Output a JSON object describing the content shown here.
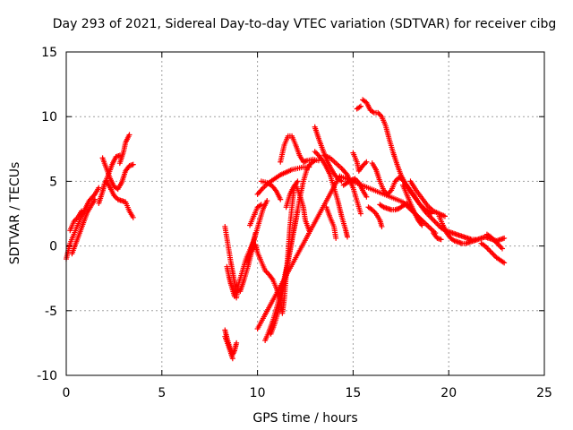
{
  "chart_data": {
    "type": "scatter",
    "title": "Day 293 of 2021, Sidereal Day-to-day VTEC variation (SDTVAR) for receiver cibg",
    "xlabel": "GPS time / hours",
    "ylabel": "SDTVAR / TECUs",
    "xlim": [
      0,
      25
    ],
    "ylim": [
      -10,
      15
    ],
    "xticks": [
      0,
      5,
      10,
      15,
      20,
      25
    ],
    "yticks": [
      -10,
      -5,
      0,
      5,
      10,
      15
    ],
    "xtick_labels": [
      "0",
      "5",
      "10",
      "15",
      "20",
      "25"
    ],
    "ytick_labels": [
      "-10",
      "-5",
      "0",
      "5",
      "10",
      "15"
    ],
    "grid": true,
    "marker": "+",
    "color": "#ff0000",
    "tracks": [
      [
        [
          0.0,
          -1.0
        ],
        [
          0.2,
          0.2
        ],
        [
          0.4,
          0.9
        ],
        [
          0.6,
          1.6
        ],
        [
          0.8,
          2.3
        ],
        [
          1.0,
          2.9
        ],
        [
          1.2,
          3.5
        ],
        [
          1.5,
          4.0
        ],
        [
          1.7,
          4.5
        ]
      ],
      [
        [
          0.3,
          -0.6
        ],
        [
          0.5,
          0.2
        ],
        [
          0.7,
          1.0
        ],
        [
          0.9,
          1.8
        ],
        [
          1.1,
          2.6
        ],
        [
          1.3,
          3.1
        ],
        [
          1.5,
          3.6
        ]
      ],
      [
        [
          0.2,
          1.2
        ],
        [
          0.4,
          1.9
        ],
        [
          0.6,
          2.2
        ],
        [
          0.8,
          2.7
        ]
      ],
      [
        [
          1.7,
          3.3
        ],
        [
          1.9,
          4.2
        ],
        [
          2.0,
          4.8
        ],
        [
          2.2,
          5.5
        ],
        [
          2.4,
          6.3
        ],
        [
          2.6,
          6.9
        ],
        [
          2.8,
          7.0
        ]
      ],
      [
        [
          1.9,
          6.8
        ],
        [
          2.1,
          6.0
        ],
        [
          2.3,
          5.2
        ],
        [
          2.5,
          4.6
        ],
        [
          2.7,
          4.4
        ],
        [
          2.9,
          4.9
        ],
        [
          3.1,
          5.8
        ],
        [
          3.3,
          6.2
        ],
        [
          3.5,
          6.3
        ]
      ],
      [
        [
          2.8,
          6.4
        ],
        [
          3.0,
          7.3
        ],
        [
          3.1,
          8.0
        ],
        [
          3.3,
          8.6
        ]
      ],
      [
        [
          2.1,
          5.0
        ],
        [
          2.3,
          4.5
        ],
        [
          2.5,
          3.9
        ],
        [
          2.7,
          3.6
        ],
        [
          2.9,
          3.5
        ],
        [
          3.1,
          3.4
        ],
        [
          3.3,
          2.7
        ],
        [
          3.5,
          2.2
        ]
      ],
      [
        [
          8.3,
          1.5
        ],
        [
          8.4,
          0.6
        ],
        [
          8.5,
          -0.3
        ],
        [
          8.6,
          -1.2
        ],
        [
          8.7,
          -2.0
        ],
        [
          8.8,
          -2.8
        ],
        [
          8.9,
          -3.6
        ]
      ],
      [
        [
          8.4,
          -1.6
        ],
        [
          8.5,
          -2.3
        ],
        [
          8.6,
          -2.9
        ],
        [
          8.7,
          -3.4
        ],
        [
          8.8,
          -3.9
        ]
      ],
      [
        [
          8.3,
          -6.5
        ],
        [
          8.4,
          -7.1
        ],
        [
          8.5,
          -7.6
        ],
        [
          8.6,
          -8.0
        ],
        [
          8.7,
          -8.4
        ],
        [
          8.8,
          -8.1
        ],
        [
          8.9,
          -7.5
        ]
      ],
      [
        [
          8.3,
          -7.0
        ],
        [
          8.5,
          -7.8
        ],
        [
          8.7,
          -8.7
        ]
      ],
      [
        [
          8.9,
          -4.0
        ],
        [
          9.0,
          -3.0
        ],
        [
          9.2,
          -2.0
        ],
        [
          9.4,
          -1.0
        ],
        [
          9.6,
          -0.3
        ],
        [
          9.8,
          0.4
        ],
        [
          9.9,
          1.0
        ]
      ],
      [
        [
          9.5,
          -1.2
        ],
        [
          9.7,
          -0.1
        ],
        [
          9.9,
          0.9
        ],
        [
          10.1,
          1.9
        ],
        [
          10.3,
          2.9
        ],
        [
          10.5,
          3.5
        ]
      ],
      [
        [
          9.6,
          1.6
        ],
        [
          9.8,
          2.3
        ],
        [
          10.0,
          3.0
        ],
        [
          10.2,
          3.2
        ]
      ],
      [
        [
          9.1,
          -3.5
        ],
        [
          9.3,
          -2.6
        ],
        [
          9.5,
          -1.6
        ],
        [
          9.7,
          -0.4
        ],
        [
          9.9,
          0.1
        ],
        [
          10.0,
          -0.5
        ],
        [
          10.2,
          -1.2
        ],
        [
          10.4,
          -1.9
        ],
        [
          10.6,
          -2.2
        ],
        [
          10.8,
          -2.6
        ],
        [
          11.0,
          -3.3
        ],
        [
          11.2,
          -4.2
        ],
        [
          11.3,
          -5.2
        ],
        [
          11.4,
          -4.1
        ],
        [
          11.5,
          -2.3
        ],
        [
          11.6,
          -0.5
        ],
        [
          11.7,
          1.5
        ],
        [
          11.8,
          3.0
        ],
        [
          11.9,
          4.3
        ]
      ],
      [
        [
          10.4,
          -7.3
        ],
        [
          10.6,
          -6.6
        ],
        [
          10.8,
          -5.8
        ],
        [
          11.0,
          -4.8
        ],
        [
          11.2,
          -3.7
        ],
        [
          11.4,
          -2.5
        ],
        [
          11.6,
          -1.1
        ],
        [
          11.8,
          0.5
        ],
        [
          12.0,
          2.0
        ],
        [
          12.2,
          3.6
        ],
        [
          12.4,
          5.0
        ],
        [
          12.6,
          6.0
        ],
        [
          12.8,
          6.4
        ],
        [
          13.0,
          6.6
        ]
      ],
      [
        [
          10.7,
          -6.8
        ],
        [
          10.9,
          -6.0
        ],
        [
          11.1,
          -5.0
        ],
        [
          11.3,
          -3.5
        ],
        [
          11.5,
          -2.0
        ],
        [
          11.7,
          -0.4
        ],
        [
          11.9,
          1.2
        ],
        [
          12.1,
          2.7
        ]
      ],
      [
        [
          10.0,
          4.0
        ],
        [
          10.3,
          4.5
        ],
        [
          10.6,
          4.9
        ],
        [
          10.9,
          5.2
        ],
        [
          11.2,
          5.5
        ],
        [
          11.5,
          5.7
        ],
        [
          11.8,
          5.9
        ],
        [
          12.1,
          6.0
        ],
        [
          12.4,
          6.1
        ],
        [
          12.7,
          6.1
        ]
      ],
      [
        [
          10.2,
          5.0
        ],
        [
          10.5,
          4.9
        ],
        [
          10.8,
          4.6
        ],
        [
          11.0,
          4.2
        ],
        [
          11.2,
          3.6
        ]
      ],
      [
        [
          11.2,
          6.5
        ],
        [
          11.4,
          7.8
        ],
        [
          11.6,
          8.5
        ],
        [
          11.8,
          8.5
        ],
        [
          12.0,
          7.8
        ],
        [
          12.2,
          7.0
        ],
        [
          12.4,
          6.5
        ],
        [
          12.6,
          6.6
        ],
        [
          12.9,
          6.7
        ],
        [
          13.2,
          6.6
        ]
      ],
      [
        [
          12.0,
          4.7
        ],
        [
          12.2,
          4.0
        ],
        [
          12.4,
          3.0
        ],
        [
          12.5,
          2.0
        ],
        [
          12.7,
          1.2
        ]
      ],
      [
        [
          11.5,
          3.0
        ],
        [
          11.7,
          4.0
        ],
        [
          11.9,
          4.6
        ],
        [
          12.1,
          5.0
        ]
      ],
      [
        [
          13.0,
          9.2
        ],
        [
          13.2,
          8.3
        ],
        [
          13.4,
          7.5
        ],
        [
          13.6,
          6.7
        ],
        [
          13.8,
          6.1
        ],
        [
          14.0,
          5.6
        ],
        [
          14.2,
          5.2
        ],
        [
          14.4,
          5.0
        ]
      ],
      [
        [
          13.0,
          7.3
        ],
        [
          13.2,
          7.0
        ],
        [
          13.4,
          6.6
        ],
        [
          13.6,
          6.1
        ],
        [
          13.8,
          5.5
        ],
        [
          14.0,
          4.5
        ],
        [
          14.2,
          3.5
        ],
        [
          14.4,
          2.3
        ],
        [
          14.6,
          1.3
        ],
        [
          14.7,
          0.7
        ]
      ],
      [
        [
          13.5,
          7.0
        ],
        [
          13.8,
          6.8
        ],
        [
          14.1,
          6.4
        ],
        [
          14.4,
          6.0
        ],
        [
          14.7,
          5.5
        ],
        [
          15.0,
          4.5
        ],
        [
          15.2,
          3.5
        ],
        [
          15.4,
          2.5
        ]
      ],
      [
        [
          13.6,
          3.0
        ],
        [
          13.8,
          2.2
        ],
        [
          14.0,
          1.5
        ],
        [
          14.1,
          0.6
        ]
      ],
      [
        [
          14.5,
          4.7
        ],
        [
          14.7,
          4.9
        ],
        [
          14.9,
          5.1
        ],
        [
          15.1,
          5.2
        ],
        [
          15.3,
          4.9
        ],
        [
          15.5,
          4.3
        ],
        [
          15.7,
          3.8
        ]
      ],
      [
        [
          15.0,
          7.2
        ],
        [
          15.2,
          6.5
        ],
        [
          15.3,
          5.8
        ],
        [
          15.5,
          6.2
        ],
        [
          15.7,
          6.5
        ]
      ],
      [
        [
          15.2,
          10.6
        ],
        [
          15.4,
          10.8
        ]
      ],
      [
        [
          15.5,
          11.3
        ],
        [
          15.7,
          11.1
        ],
        [
          15.9,
          10.5
        ],
        [
          16.1,
          10.3
        ],
        [
          16.3,
          10.3
        ],
        [
          16.5,
          10.0
        ],
        [
          16.7,
          9.3
        ],
        [
          16.9,
          8.2
        ],
        [
          17.1,
          7.2
        ],
        [
          17.3,
          6.3
        ],
        [
          17.5,
          5.5
        ],
        [
          17.7,
          4.9
        ],
        [
          17.9,
          4.4
        ],
        [
          18.1,
          4.0
        ],
        [
          18.3,
          3.6
        ],
        [
          18.5,
          3.2
        ],
        [
          18.7,
          2.9
        ],
        [
          18.9,
          2.7
        ],
        [
          19.1,
          2.5
        ]
      ],
      [
        [
          15.8,
          3.0
        ],
        [
          16.0,
          2.8
        ],
        [
          16.2,
          2.5
        ],
        [
          16.4,
          2.0
        ],
        [
          16.5,
          1.5
        ]
      ],
      [
        [
          16.0,
          6.4
        ],
        [
          16.2,
          5.9
        ],
        [
          16.4,
          5.0
        ],
        [
          16.6,
          4.3
        ],
        [
          16.8,
          4.0
        ],
        [
          17.0,
          4.3
        ],
        [
          17.2,
          5.0
        ],
        [
          17.4,
          5.3
        ],
        [
          17.6,
          5.1
        ],
        [
          17.8,
          4.7
        ],
        [
          18.0,
          4.3
        ],
        [
          18.2,
          3.9
        ],
        [
          18.4,
          3.4
        ],
        [
          18.6,
          3.0
        ],
        [
          18.8,
          2.6
        ],
        [
          19.0,
          2.3
        ],
        [
          19.2,
          2.0
        ],
        [
          19.4,
          1.7
        ],
        [
          19.6,
          1.4
        ],
        [
          19.8,
          1.2
        ],
        [
          20.0,
          1.1
        ],
        [
          20.2,
          1.0
        ],
        [
          20.4,
          0.9
        ],
        [
          20.6,
          0.8
        ],
        [
          20.8,
          0.7
        ],
        [
          21.0,
          0.6
        ],
        [
          21.2,
          0.5
        ],
        [
          21.4,
          0.5
        ]
      ],
      [
        [
          16.4,
          3.2
        ],
        [
          16.6,
          3.0
        ],
        [
          16.8,
          2.9
        ],
        [
          17.0,
          2.8
        ],
        [
          17.2,
          2.8
        ],
        [
          17.4,
          2.9
        ],
        [
          17.6,
          3.1
        ],
        [
          17.8,
          3.3
        ],
        [
          18.0,
          3.0
        ],
        [
          18.2,
          2.6
        ],
        [
          18.4,
          2.2
        ],
        [
          18.6,
          1.9
        ]
      ],
      [
        [
          17.6,
          4.7
        ],
        [
          17.8,
          4.0
        ],
        [
          18.0,
          3.3
        ],
        [
          18.2,
          2.6
        ],
        [
          18.4,
          2.0
        ],
        [
          18.6,
          1.6
        ]
      ],
      [
        [
          18.0,
          5.0
        ],
        [
          18.3,
          4.3
        ],
        [
          18.6,
          3.7
        ],
        [
          18.9,
          3.1
        ],
        [
          19.2,
          2.7
        ],
        [
          19.5,
          2.5
        ],
        [
          19.8,
          2.3
        ]
      ],
      [
        [
          19.2,
          1.0
        ],
        [
          19.4,
          0.6
        ],
        [
          19.6,
          0.5
        ]
      ],
      [
        [
          19.5,
          2.3
        ],
        [
          19.7,
          1.6
        ],
        [
          19.9,
          1.0
        ],
        [
          20.1,
          0.6
        ],
        [
          20.3,
          0.4
        ],
        [
          20.5,
          0.3
        ],
        [
          20.7,
          0.2
        ],
        [
          20.9,
          0.2
        ],
        [
          21.1,
          0.3
        ],
        [
          21.3,
          0.4
        ],
        [
          21.5,
          0.5
        ],
        [
          21.7,
          0.6
        ],
        [
          21.9,
          0.7
        ],
        [
          22.1,
          0.6
        ],
        [
          22.3,
          0.5
        ],
        [
          22.5,
          0.4
        ],
        [
          22.7,
          0.5
        ],
        [
          22.9,
          0.6
        ]
      ],
      [
        [
          21.7,
          0.2
        ],
        [
          21.9,
          0.0
        ],
        [
          22.1,
          -0.3
        ],
        [
          22.3,
          -0.6
        ],
        [
          22.5,
          -0.9
        ],
        [
          22.7,
          -1.1
        ],
        [
          22.9,
          -1.3
        ]
      ],
      [
        [
          22.0,
          0.9
        ],
        [
          22.2,
          0.7
        ],
        [
          22.4,
          0.4
        ],
        [
          22.6,
          0.1
        ],
        [
          22.8,
          -0.2
        ]
      ],
      [
        [
          10.0,
          -6.4
        ],
        [
          14.3,
          5.4
        ],
        [
          17.6,
          3.4
        ],
        [
          19.3,
          1.0
        ]
      ]
    ]
  }
}
